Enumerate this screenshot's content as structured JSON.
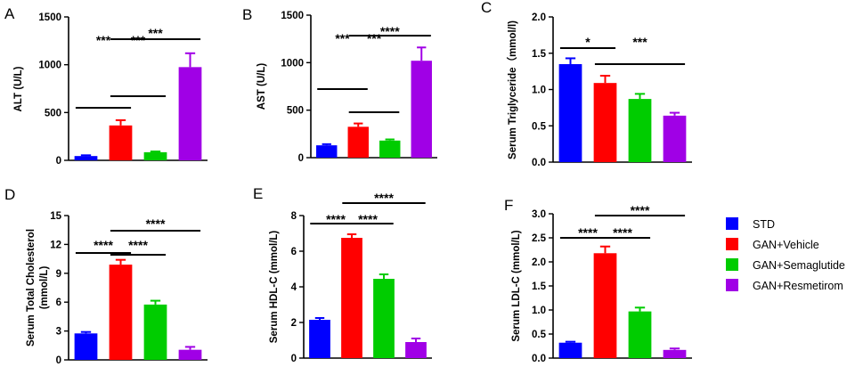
{
  "colors": {
    "STD": "#0000ff",
    "GAN+Vehicle": "#ff0000",
    "GAN+Semaglutide": "#00cc00",
    "GAN+Resmetirom": "#a000e6"
  },
  "legend": [
    "STD",
    "GAN+Vehicle",
    "GAN+Semaglutide",
    "GAN+Resmetirom"
  ],
  "chart_data": [
    {
      "type": "bar",
      "letter": "A",
      "categories": [
        "STD",
        "GAN+Vehicle",
        "GAN+Semaglutide",
        "GAN+Resmetirom"
      ],
      "values": [
        45,
        365,
        85,
        975
      ],
      "errors": [
        8,
        55,
        8,
        145
      ],
      "ylabel": "ALT (U/L)",
      "ylim": [
        0,
        1500
      ],
      "yticks": [
        0,
        500,
        1000,
        1500
      ],
      "ytick_labels": [
        "0",
        "500",
        "1000",
        "1500"
      ],
      "significance": [
        {
          "from": 0,
          "to": 1,
          "label": "***"
        },
        {
          "from": 1,
          "to": 2,
          "label": "***"
        },
        {
          "from": 1,
          "to": 3,
          "label": "***"
        }
      ]
    },
    {
      "type": "bar",
      "letter": "B",
      "categories": [
        "STD",
        "GAN+Vehicle",
        "GAN+Semaglutide",
        "GAN+Resmetirom"
      ],
      "values": [
        130,
        325,
        180,
        1020
      ],
      "errors": [
        12,
        35,
        12,
        140
      ],
      "ylabel": "AST (U/L)",
      "ylim": [
        0,
        1500
      ],
      "yticks": [
        0,
        500,
        1000,
        1500
      ],
      "ytick_labels": [
        "0",
        "500",
        "1000",
        "1500"
      ],
      "significance": [
        {
          "from": 0,
          "to": 1,
          "label": "***"
        },
        {
          "from": 1,
          "to": 2,
          "label": "***"
        },
        {
          "from": 1,
          "to": 3,
          "label": "****"
        }
      ]
    },
    {
      "type": "bar",
      "letter": "C",
      "categories": [
        "STD",
        "GAN+Vehicle",
        "GAN+Semaglutide",
        "GAN+Resmetirom"
      ],
      "values": [
        1.35,
        1.09,
        0.87,
        0.64
      ],
      "errors": [
        0.08,
        0.1,
        0.07,
        0.04
      ],
      "ylabel": "Serum Triglyceride（mmol/l)",
      "ylim": [
        0,
        2
      ],
      "yticks": [
        0,
        0.5,
        1,
        1.5,
        2
      ],
      "ytick_labels": [
        "0.0",
        "0.5",
        "1.0",
        "1.5",
        "2.0"
      ],
      "significance": [
        {
          "from": 0,
          "to": 1,
          "label": "*"
        },
        {
          "from": 1,
          "to": 3,
          "label": "***"
        }
      ]
    },
    {
      "type": "bar",
      "letter": "D",
      "categories": [
        "STD",
        "GAN+Vehicle",
        "GAN+Semaglutide",
        "GAN+Resmetirom"
      ],
      "values": [
        2.75,
        9.9,
        5.75,
        1.05
      ],
      "errors": [
        0.15,
        0.5,
        0.4,
        0.3
      ],
      "ylabel": "Serum Total Cholesterol",
      "ylabel2": "(mmol/L)",
      "ylim": [
        0,
        15
      ],
      "yticks": [
        0,
        3,
        6,
        9,
        12,
        15
      ],
      "ytick_labels": [
        "0",
        "3",
        "6",
        "9",
        "12",
        "15"
      ],
      "significance": [
        {
          "from": 0,
          "to": 1,
          "label": "****"
        },
        {
          "from": 1,
          "to": 2,
          "label": "****"
        },
        {
          "from": 1,
          "to": 3,
          "label": "****"
        }
      ]
    },
    {
      "type": "bar",
      "letter": "E",
      "categories": [
        "STD",
        "GAN+Vehicle",
        "GAN+Semaglutide",
        "GAN+Resmetirom"
      ],
      "values": [
        2.15,
        6.75,
        4.45,
        0.9
      ],
      "errors": [
        0.1,
        0.2,
        0.25,
        0.2
      ],
      "ylabel": "Serum HDL-C (mmol/L)",
      "ylim": [
        0,
        8
      ],
      "yticks": [
        0,
        2,
        4,
        6,
        8
      ],
      "ytick_labels": [
        "0",
        "2",
        "4",
        "6",
        "8"
      ],
      "significance": [
        {
          "from": 0,
          "to": 1,
          "label": "****"
        },
        {
          "from": 1,
          "to": 2,
          "label": "****"
        },
        {
          "from": 1,
          "to": 3,
          "label": "****"
        }
      ]
    },
    {
      "type": "bar",
      "letter": "F",
      "categories": [
        "STD",
        "GAN+Vehicle",
        "GAN+Semaglutide",
        "GAN+Resmetirom"
      ],
      "values": [
        0.32,
        2.18,
        0.97,
        0.17
      ],
      "errors": [
        0.02,
        0.14,
        0.08,
        0.03
      ],
      "ylabel": "Serum LDL-C (mmol/L)",
      "ylim": [
        0,
        3
      ],
      "yticks": [
        0,
        0.5,
        1,
        1.5,
        2,
        2.5,
        3
      ],
      "ytick_labels": [
        "0.0",
        "0.5",
        "1.0",
        "1.5",
        "2.0",
        "2.5",
        "3.0"
      ],
      "significance": [
        {
          "from": 0,
          "to": 1,
          "label": "****"
        },
        {
          "from": 1,
          "to": 2,
          "label": "****"
        },
        {
          "from": 1,
          "to": 3,
          "label": "****"
        }
      ]
    }
  ]
}
